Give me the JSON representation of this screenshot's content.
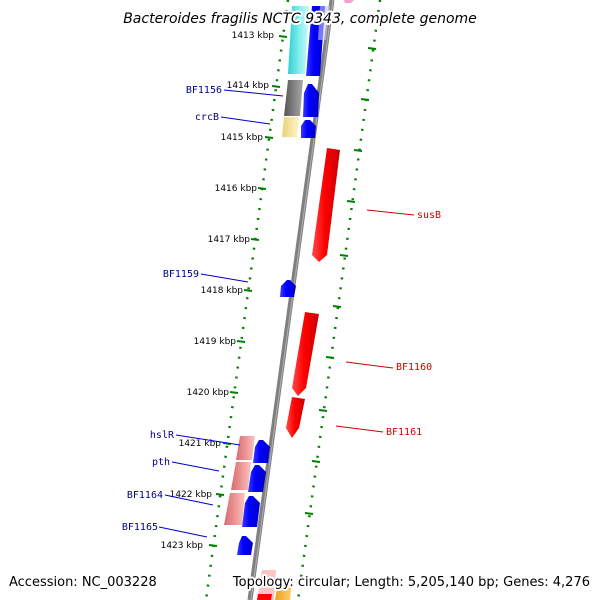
{
  "title": "Bacteroides fragilis NCTC 9343, complete genome",
  "footer": {
    "accession": "Accession: NC_003228",
    "summary": "Topology: circular; Length: 5,205,140 bp; Genes: 4,276"
  },
  "colors": {
    "forward_gene": "#0000ff",
    "reverse_gene": "#ff0000",
    "backbone": "#808080",
    "tick_mark": "#008000",
    "left_label": "#00008b",
    "right_label": "#cc0000"
  },
  "kbp_labels": [
    "1413 kbp",
    "1414 kbp",
    "1415 kbp",
    "1416 kbp",
    "1417 kbp",
    "1418 kbp",
    "1419 kbp",
    "1420 kbp",
    "1421 kbp",
    "1422 kbp",
    "1423 kbp"
  ],
  "left_gene_labels": [
    "BF1156",
    "crcB",
    "BF1159",
    "hslR",
    "pth",
    "BF1164",
    "BF1165"
  ],
  "right_gene_labels": [
    "susB",
    "BF1160",
    "BF1161"
  ]
}
